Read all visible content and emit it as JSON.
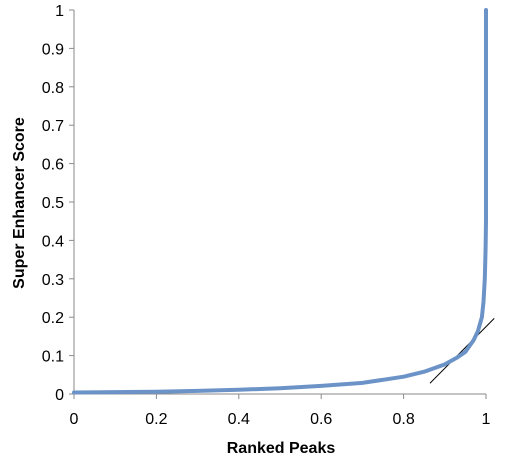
{
  "chart_data": {
    "type": "line",
    "title": "",
    "xlabel": "Ranked Peaks",
    "ylabel": "Super Enhancer Score",
    "xlim": [
      0,
      1
    ],
    "ylim": [
      0,
      1
    ],
    "x_ticks": [
      "0",
      "0.2",
      "0.4",
      "0.6",
      "0.8",
      "1"
    ],
    "y_ticks": [
      "0",
      "0.1",
      "0.2",
      "0.3",
      "0.4",
      "0.5",
      "0.6",
      "0.7",
      "0.8",
      "0.9",
      "1"
    ],
    "x_tick_values": [
      0,
      0.2,
      0.4,
      0.6,
      0.8,
      1
    ],
    "y_tick_values": [
      0,
      0.1,
      0.2,
      0.3,
      0.4,
      0.5,
      0.6,
      0.7,
      0.8,
      0.9,
      1
    ],
    "grid": false,
    "legend": "none",
    "series": [
      {
        "color": "#6c93c7",
        "points": [
          [
            0.0,
            0.004
          ],
          [
            0.1,
            0.005
          ],
          [
            0.2,
            0.006
          ],
          [
            0.3,
            0.008
          ],
          [
            0.4,
            0.011
          ],
          [
            0.5,
            0.015
          ],
          [
            0.6,
            0.021
          ],
          [
            0.7,
            0.029
          ],
          [
            0.8,
            0.045
          ],
          [
            0.85,
            0.058
          ],
          [
            0.9,
            0.077
          ],
          [
            0.93,
            0.095
          ],
          [
            0.95,
            0.11
          ],
          [
            0.96,
            0.125
          ],
          [
            0.97,
            0.14
          ],
          [
            0.98,
            0.163
          ],
          [
            0.99,
            0.2
          ],
          [
            0.994,
            0.24
          ],
          [
            0.997,
            0.3
          ],
          [
            0.999,
            0.38
          ],
          [
            1.0,
            0.45
          ],
          [
            1.0,
            1.0
          ]
        ]
      }
    ],
    "tangent_line": {
      "color": "#000000",
      "points": [
        [
          0.864,
          0.028
        ],
        [
          1.02,
          0.197
        ]
      ]
    }
  }
}
